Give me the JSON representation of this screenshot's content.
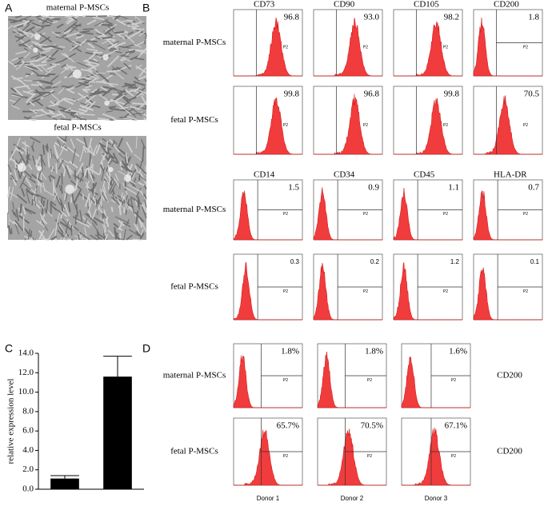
{
  "panel_a": {
    "letter": "A",
    "images": [
      {
        "label": "maternal P-MSCs"
      },
      {
        "label": "fetal P-MSCs"
      }
    ]
  },
  "panel_b": {
    "letter": "B",
    "gate": "P2",
    "blocks": [
      {
        "markers": [
          "CD73",
          "CD90",
          "CD105",
          "CD200"
        ],
        "rows": [
          {
            "label": "maternal P-MSCs",
            "percents": [
              "96.8",
              "93.0",
              "98.2",
              "1.8"
            ]
          },
          {
            "label": "fetal P-MSCs",
            "percents": [
              "99.8",
              "96.8",
              "99.8",
              "70.5"
            ]
          }
        ]
      },
      {
        "markers": [
          "CD14",
          "CD34",
          "CD45",
          "HLA-DR"
        ],
        "rows": [
          {
            "label": "maternal P-MSCs",
            "percents": [
              "1.5",
              "0.9",
              "1.1",
              "0.7"
            ]
          },
          {
            "label": "fetal P-MSCs",
            "percents": [
              "0.3",
              "0.2",
              "1.2",
              "0.1"
            ]
          }
        ]
      }
    ]
  },
  "panel_c": {
    "letter": "C",
    "type": "bar",
    "ylabel": "relative expression level",
    "values": [
      1.1,
      11.6
    ],
    "errors": [
      0.3,
      2.1
    ],
    "color": "#000000",
    "ylim": [
      0,
      14
    ],
    "yticks": [
      {
        "value": 0,
        "label": "0.0"
      },
      {
        "value": 2,
        "label": "2.0"
      },
      {
        "value": 4,
        "label": "4.0"
      },
      {
        "value": 6,
        "label": "6.0"
      },
      {
        "value": 8,
        "label": "8.0"
      },
      {
        "value": 10,
        "label": "10.0"
      },
      {
        "value": 12,
        "label": "12.0"
      },
      {
        "value": 14,
        "label": "14.0"
      }
    ]
  },
  "panel_d": {
    "letter": "D",
    "marker": "CD200",
    "rows": [
      {
        "label": "maternal P-MSCs",
        "percents": [
          "1.8%",
          "1.8%",
          "1.6%"
        ]
      },
      {
        "label": "fetal P-MSCs",
        "percents": [
          "65.7%",
          "70.5%",
          "67.1%"
        ]
      }
    ],
    "donors": [
      "Donor 1",
      "Donor 2",
      "Donor 3"
    ]
  }
}
